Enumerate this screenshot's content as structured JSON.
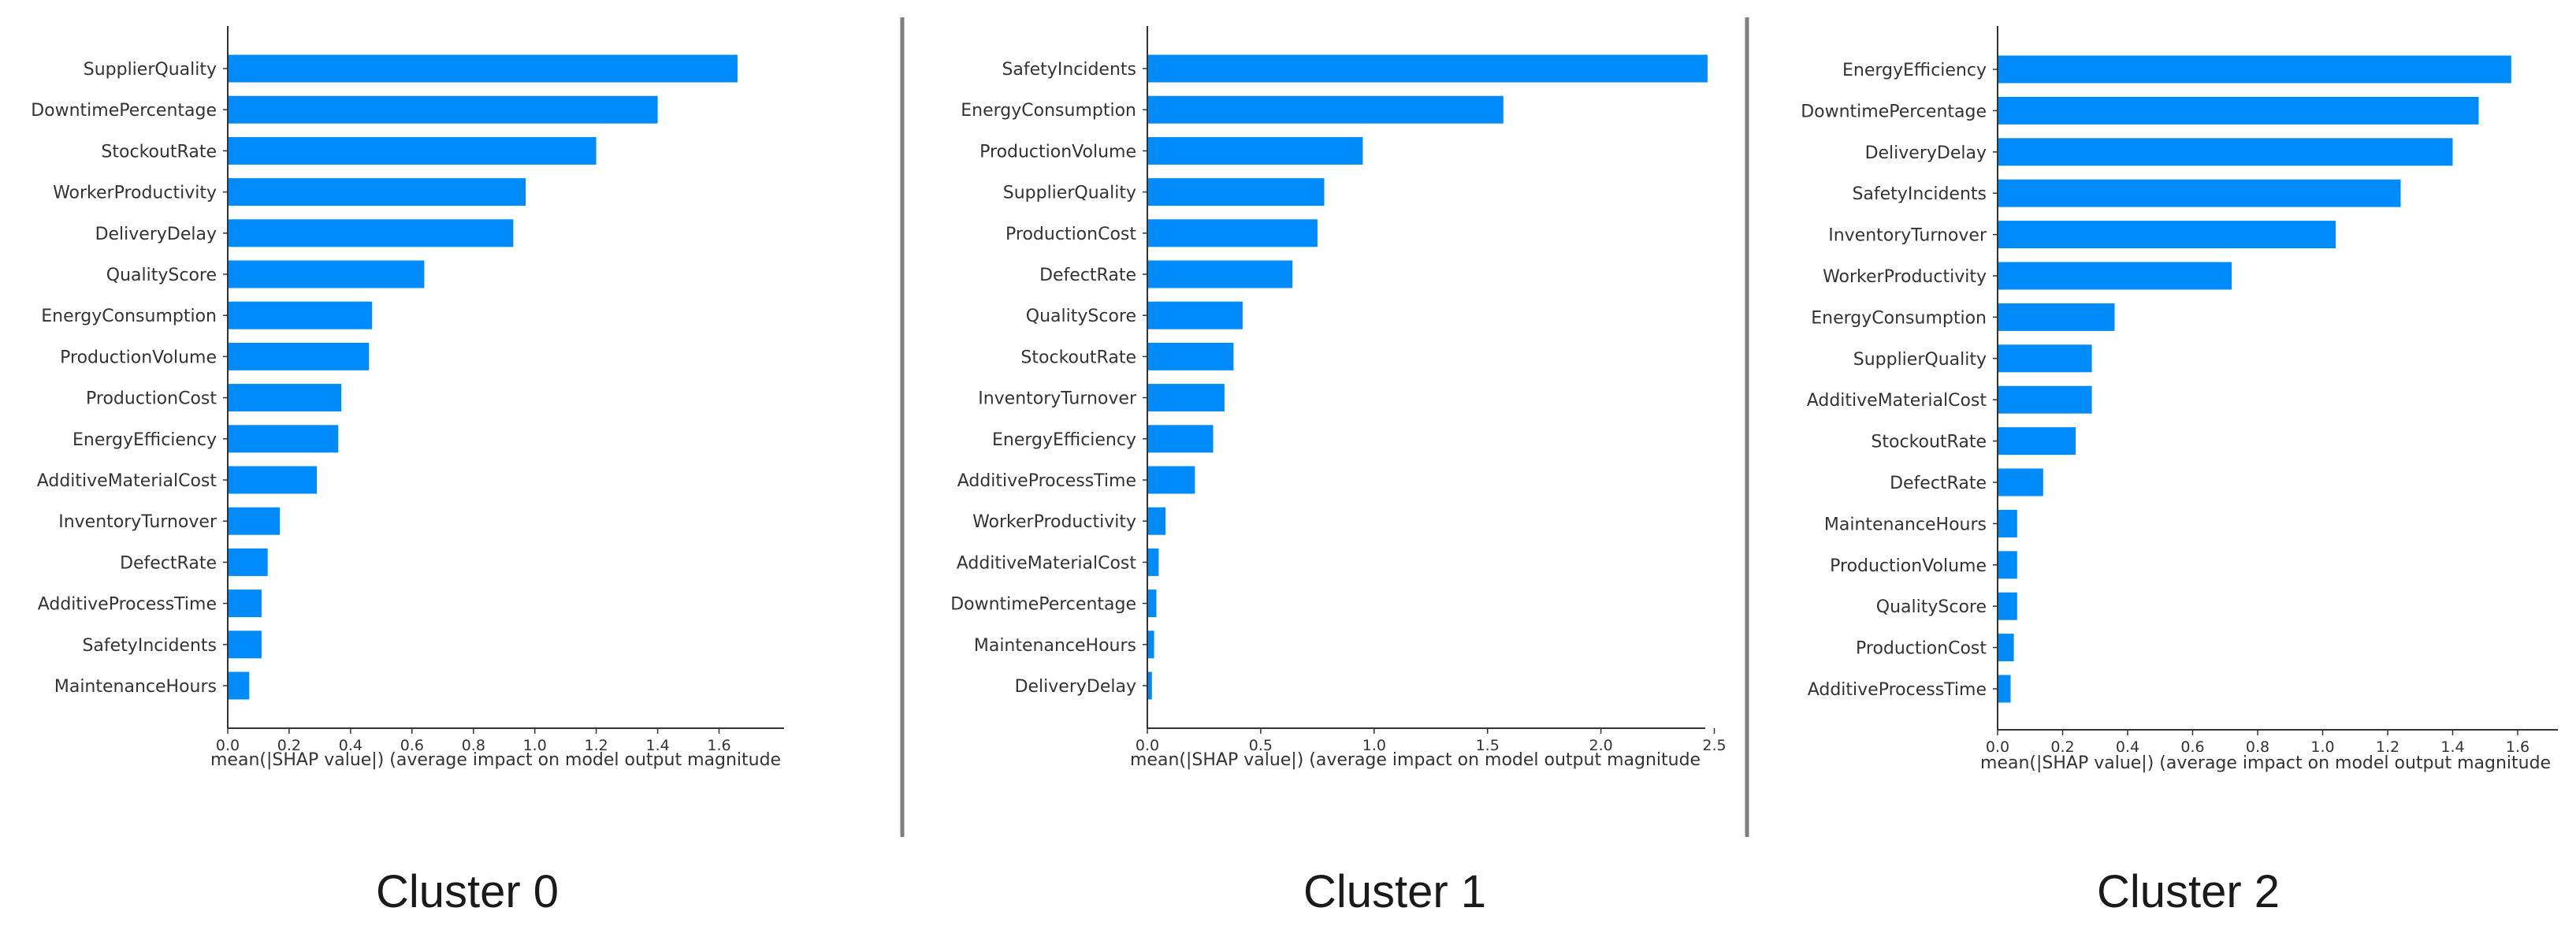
{
  "colors": {
    "bar": "#008bfb",
    "axis": "#333333",
    "text": "#333333",
    "divider": "#7f7f7f"
  },
  "chart_data": [
    {
      "type": "bar",
      "orientation": "horizontal",
      "title": "",
      "xlabel": "mean(|SHAP value|) (average impact on model output magnitude",
      "ylabel": "",
      "xlim": [
        0,
        1.75
      ],
      "xticks": [
        0.0,
        0.2,
        0.4,
        0.6,
        0.8,
        1.0,
        1.2,
        1.4,
        1.6
      ],
      "xtick_labels": [
        "0.0",
        "0.2",
        "0.4",
        "0.6",
        "0.8",
        "1.0",
        "1.2",
        "1.4",
        "1.6"
      ],
      "grid": false,
      "categories": [
        "SupplierQuality",
        "DowntimePercentage",
        "StockoutRate",
        "WorkerProductivity",
        "DeliveryDelay",
        "QualityScore",
        "EnergyConsumption",
        "ProductionVolume",
        "ProductionCost",
        "EnergyEfficiency",
        "AdditiveMaterialCost",
        "InventoryTurnover",
        "DefectRate",
        "AdditiveProcessTime",
        "SafetyIncidents",
        "MaintenanceHours"
      ],
      "values": [
        1.66,
        1.4,
        1.2,
        0.97,
        0.93,
        0.64,
        0.47,
        0.46,
        0.37,
        0.36,
        0.29,
        0.17,
        0.13,
        0.11,
        0.11,
        0.07
      ],
      "caption": "Cluster 0"
    },
    {
      "type": "bar",
      "orientation": "horizontal",
      "title": "",
      "xlabel": "mean(|SHAP value|) (average impact on model output magnitude",
      "ylabel": "",
      "xlim": [
        0,
        2.6
      ],
      "xticks": [
        0.0,
        0.5,
        1.0,
        1.5,
        2.0,
        2.5
      ],
      "xtick_labels": [
        "0.0",
        "0.5",
        "1.0",
        "1.5",
        "2.0",
        "2.5"
      ],
      "grid": false,
      "categories": [
        "SafetyIncidents",
        "EnergyConsumption",
        "ProductionVolume",
        "SupplierQuality",
        "ProductionCost",
        "DefectRate",
        "QualityScore",
        "StockoutRate",
        "InventoryTurnover",
        "EnergyEfficiency",
        "AdditiveProcessTime",
        "WorkerProductivity",
        "AdditiveMaterialCost",
        "DowntimePercentage",
        "MaintenanceHours",
        "DeliveryDelay"
      ],
      "values": [
        2.47,
        1.57,
        0.95,
        0.78,
        0.75,
        0.64,
        0.42,
        0.38,
        0.34,
        0.29,
        0.21,
        0.08,
        0.05,
        0.04,
        0.03,
        0.02
      ],
      "caption": "Cluster 1"
    },
    {
      "type": "bar",
      "orientation": "horizontal",
      "title": "",
      "xlabel": "mean(|SHAP value|) (average impact on model output magnitude",
      "ylabel": "",
      "xlim": [
        0,
        1.65
      ],
      "xticks": [
        0.0,
        0.2,
        0.4,
        0.6,
        0.8,
        1.0,
        1.2,
        1.4,
        1.6
      ],
      "xtick_labels": [
        "0.0",
        "0.2",
        "0.4",
        "0.6",
        "0.8",
        "1.0",
        "1.2",
        "1.4",
        "1.6"
      ],
      "grid": false,
      "categories": [
        "EnergyEfficiency",
        "DowntimePercentage",
        "DeliveryDelay",
        "SafetyIncidents",
        "InventoryTurnover",
        "WorkerProductivity",
        "EnergyConsumption",
        "SupplierQuality",
        "AdditiveMaterialCost",
        "StockoutRate",
        "DefectRate",
        "MaintenanceHours",
        "ProductionVolume",
        "QualityScore",
        "ProductionCost",
        "AdditiveProcessTime"
      ],
      "values": [
        1.58,
        1.48,
        1.4,
        1.24,
        1.04,
        0.72,
        0.36,
        0.29,
        0.29,
        0.24,
        0.14,
        0.06,
        0.06,
        0.06,
        0.05,
        0.04
      ],
      "caption": "Cluster 2"
    }
  ]
}
